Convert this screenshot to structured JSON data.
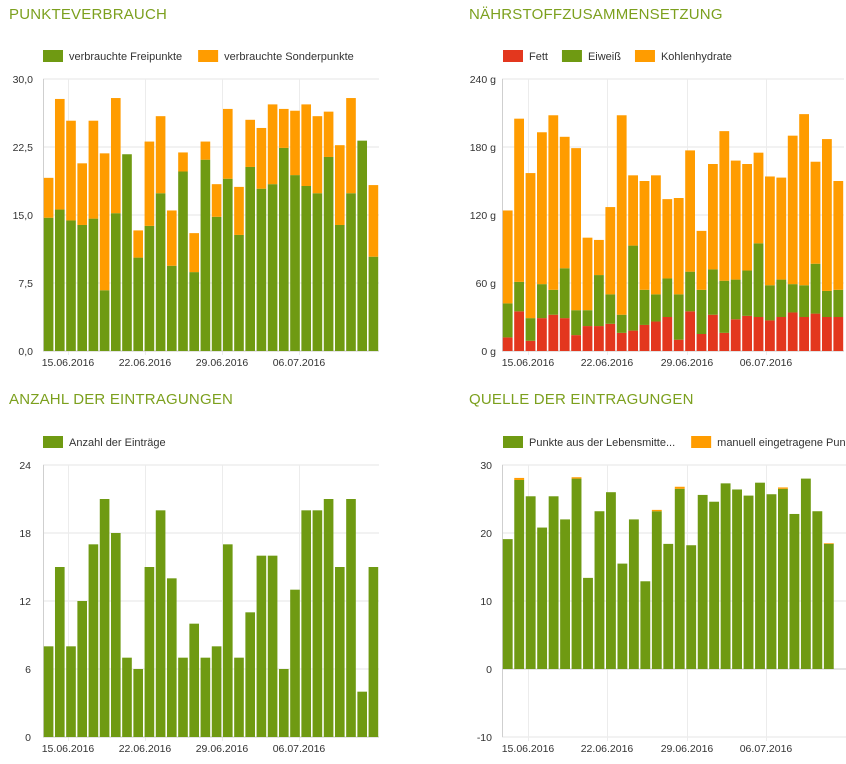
{
  "charts": [
    {
      "title": "PUNKTEVERBRAUCH",
      "type": "bar",
      "stacked": true,
      "legend": [
        {
          "label": "verbrauchte Freipunkte",
          "color": "#6f9a12"
        },
        {
          "label": "verbrauchte Sonderpunkte",
          "color": "#ff9c00"
        }
      ],
      "yticks": [
        "0,0",
        "7,5",
        "15,0",
        "22,5",
        "30,0"
      ],
      "ylim": [
        0,
        30
      ],
      "xlabels": [
        "15.06.2016",
        "22.06.2016",
        "29.06.2016",
        "06.07.2016"
      ],
      "chart_data": {
        "type": "bar",
        "stacked": true,
        "ylim": [
          0,
          30
        ],
        "series": [
          {
            "name": "verbrauchte Freipunkte",
            "color": "#6f9a12",
            "values": [
              14.7,
              15.6,
              14.4,
              13.9,
              14.6,
              6.7,
              15.2,
              21.7,
              10.3,
              13.8,
              17.4,
              9.4,
              19.8,
              8.7,
              21.1,
              14.8,
              19.0,
              12.8,
              20.3,
              17.9,
              18.4,
              22.4,
              19.4,
              18.2,
              17.4,
              21.4,
              13.9,
              17.4,
              23.2,
              10.4
            ]
          },
          {
            "name": "verbrauchte Sonderpunkte",
            "color": "#ff9c00",
            "values": [
              4.4,
              12.2,
              11.0,
              6.8,
              10.8,
              15.1,
              12.7,
              0,
              3.0,
              9.3,
              8.5,
              6.1,
              2.1,
              4.3,
              2.0,
              3.6,
              7.7,
              5.3,
              5.2,
              6.7,
              8.8,
              4.3,
              7.1,
              9.0,
              8.5,
              5.0,
              8.8,
              10.5,
              0,
              7.9
            ]
          }
        ]
      }
    },
    {
      "title": "NÄHRSTOFFZUSAMMENSETZUNG",
      "type": "bar",
      "stacked": true,
      "legend": [
        {
          "label": "Fett",
          "color": "#e3371e"
        },
        {
          "label": "Eiweiß",
          "color": "#6f9a12"
        },
        {
          "label": "Kohlenhydrate",
          "color": "#ff9c00"
        }
      ],
      "yticks": [
        "0 g",
        "60 g",
        "120 g",
        "180 g",
        "240 g"
      ],
      "ylim": [
        0,
        240
      ],
      "xlabels": [
        "15.06.2016",
        "22.06.2016",
        "29.06.2016",
        "06.07.2016"
      ],
      "chart_data": {
        "type": "bar",
        "stacked": true,
        "ylim": [
          0,
          240
        ],
        "series": [
          {
            "name": "Fett",
            "color": "#e3371e",
            "values": [
              12,
              35,
              9,
              29,
              32,
              29,
              14,
              22,
              22,
              24,
              16,
              18,
              23,
              26,
              30,
              10,
              35,
              15,
              32,
              16,
              28,
              31,
              30,
              27,
              30,
              34,
              30,
              33,
              30,
              30
            ]
          },
          {
            "name": "Eiweiß",
            "color": "#6f9a12",
            "values": [
              30,
              26,
              20,
              30,
              22,
              44,
              22,
              14,
              45,
              26,
              16,
              75,
              31,
              24,
              34,
              40,
              35,
              39,
              40,
              46,
              35,
              40,
              65,
              31,
              33,
              25,
              28,
              44,
              23,
              24
            ]
          },
          {
            "name": "Kohlenhydrate",
            "color": "#ff9c00",
            "values": [
              82,
              144,
              128,
              134,
              154,
              116,
              143,
              64,
              31,
              77,
              176,
              62,
              96,
              105,
              70,
              85,
              107,
              52,
              93,
              132,
              105,
              94,
              80,
              96,
              90,
              131,
              151,
              90,
              134,
              96
            ]
          }
        ]
      }
    },
    {
      "title": "ANZAHL DER EINTRAGUNGEN",
      "type": "bar",
      "stacked": false,
      "legend": [
        {
          "label": "Anzahl der Einträge",
          "color": "#6f9a12"
        }
      ],
      "yticks": [
        "0",
        "6",
        "12",
        "18",
        "24"
      ],
      "ylim": [
        0,
        24
      ],
      "xlabels": [
        "15.06.2016",
        "22.06.2016",
        "29.06.2016",
        "06.07.2016"
      ],
      "chart_data": {
        "type": "bar",
        "ylim": [
          0,
          24
        ],
        "series": [
          {
            "name": "Anzahl der Einträge",
            "color": "#6f9a12",
            "values": [
              8,
              15,
              8,
              12,
              17,
              21,
              18,
              7,
              6,
              15,
              20,
              14,
              7,
              10,
              7,
              8,
              17,
              7,
              11,
              16,
              16,
              6,
              13,
              20,
              20,
              21,
              15,
              21,
              4,
              15
            ]
          }
        ]
      }
    },
    {
      "title": "QUELLE DER EINTRAGUNGEN",
      "type": "bar",
      "stacked": true,
      "legend": [
        {
          "label": "Punkte aus der Lebensmitte...",
          "color": "#6f9a12"
        },
        {
          "label": "manuell eingetragene Punkt",
          "color": "#ff9c00"
        }
      ],
      "yticks": [
        "-10",
        "0",
        "10",
        "20",
        "30"
      ],
      "ylim": [
        -10,
        30
      ],
      "xlabels": [
        "15.06.2016",
        "22.06.2016",
        "29.06.2016",
        "06.07.2016"
      ],
      "chart_data": {
        "type": "bar",
        "stacked": true,
        "ylim": [
          -10,
          30
        ],
        "series": [
          {
            "name": "Punkte aus der Lebensmitte...",
            "color": "#6f9a12",
            "values": [
              19.1,
              27.8,
              25.4,
              20.8,
              25.4,
              22.0,
              28.0,
              13.4,
              23.2,
              26.0,
              15.5,
              22.0,
              12.9,
              23.2,
              18.4,
              26.5,
              18.2,
              25.6,
              24.6,
              27.3,
              26.4,
              25.5,
              27.4,
              25.7,
              26.5,
              22.8,
              28.0,
              23.2,
              18.4,
              0
            ]
          },
          {
            "name": "manuell eingetragene Punkt",
            "color": "#ff9c00",
            "values": [
              0,
              0.3,
              0,
              0,
              0,
              0,
              0.2,
              0,
              0,
              0,
              0,
              0,
              0,
              0.2,
              0,
              0.3,
              0,
              0,
              0,
              0,
              0,
              0,
              0,
              0,
              0.2,
              0,
              0,
              0,
              0.1,
              0
            ]
          }
        ]
      }
    }
  ]
}
